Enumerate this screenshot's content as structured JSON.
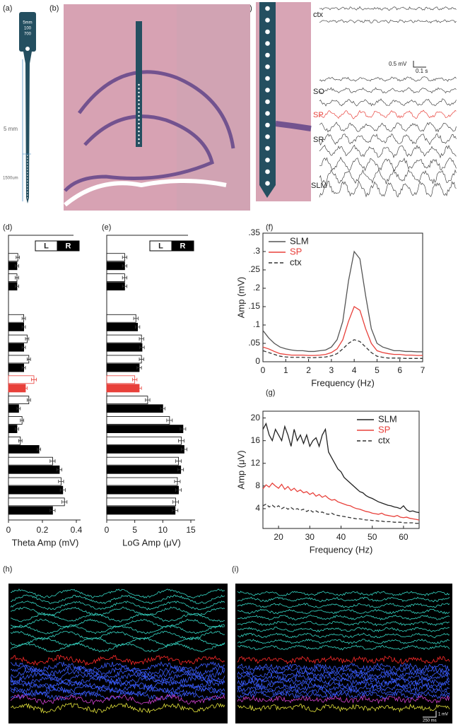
{
  "panel_labels": [
    "(a)",
    "(b)",
    "(c)",
    "(d)",
    "(e)",
    "(f)",
    "(g)",
    "(h)",
    "(i)"
  ],
  "probe": {
    "head": [
      "5mm",
      "100",
      "700"
    ],
    "length": "5 mm",
    "spacing": "1500um"
  },
  "traces": {
    "labels": [
      "ctx",
      "SO",
      "SP",
      "SR",
      "SLM"
    ],
    "scale_voltage": "0.5 mV",
    "scale_time": "0.1 s"
  },
  "recording_scale": {
    "voltage": "1 mV",
    "time": "250 ms"
  },
  "chart_data": [
    {
      "type": "hbar",
      "xlabel": "Theta Amp (mV)",
      "categories": [
        null,
        null,
        null,
        null,
        null,
        null,
        null,
        null,
        null,
        null,
        null,
        null,
        null
      ],
      "series": [
        {
          "name": "L",
          "color": "#ffffff",
          "values": [
            0.055,
            0.05,
            null,
            0.09,
            0.11,
            0.12,
            0.15,
            0.12,
            0.08,
            0.07,
            0.26,
            0.31,
            0.33
          ],
          "errors": [
            0.01,
            0.01,
            null,
            0.01,
            0.01,
            0.01,
            0.015,
            0.01,
            0.01,
            0.01,
            0.015,
            0.015,
            0.015
          ]
        },
        {
          "name": "R",
          "color": "#000000",
          "values": [
            0.05,
            0.05,
            null,
            0.09,
            0.09,
            0.09,
            0.1,
            0.06,
            0.05,
            0.18,
            0.3,
            0.32,
            0.26
          ],
          "errors": [
            0.01,
            0.01,
            null,
            0.01,
            0.01,
            0.01,
            0.01,
            0.01,
            0.01,
            0.01,
            0.015,
            0.015,
            0.015
          ]
        }
      ],
      "highlight_index": 6,
      "highlight_color": "#e8403a",
      "xlim": [
        0,
        0.4
      ],
      "xticks": [
        0,
        0.2,
        0.4
      ],
      "legend": "upper right"
    },
    {
      "type": "hbar",
      "xlabel": "LoG Amp (μV)",
      "categories": [
        null,
        null,
        null,
        null,
        null,
        null,
        null,
        null,
        null,
        null,
        null,
        null,
        null
      ],
      "series": [
        {
          "name": "L",
          "color": "#ffffff",
          "values": [
            3.2,
            3.2,
            null,
            5.2,
            6.2,
            6.2,
            5.0,
            7.3,
            11.2,
            13.3,
            12.8,
            12.6,
            12.3
          ],
          "errors": [
            0.4,
            0.4,
            null,
            0.4,
            0.4,
            0.4,
            0.4,
            0.4,
            0.5,
            0.5,
            0.5,
            0.5,
            0.5
          ]
        },
        {
          "name": "R",
          "color": "#000000",
          "values": [
            3.2,
            3.2,
            null,
            5.5,
            6.3,
            5.8,
            5.8,
            10.0,
            13.6,
            13.8,
            13.2,
            12.8,
            12.2
          ],
          "errors": [
            0.4,
            0.4,
            null,
            0.4,
            0.4,
            0.4,
            0.4,
            0.4,
            0.5,
            0.5,
            0.5,
            0.5,
            0.5
          ]
        }
      ],
      "highlight_index": 6,
      "highlight_color": "#e8403a",
      "xlim": [
        0,
        15
      ],
      "xticks": [
        0,
        5,
        10,
        15
      ],
      "legend": "upper right"
    },
    {
      "type": "line",
      "xlabel": "Frequency (Hz)",
      "ylabel": "Amp (mV)",
      "x": [
        0,
        0.25,
        0.5,
        0.75,
        1,
        1.25,
        1.5,
        1.75,
        2,
        2.25,
        2.5,
        2.75,
        3,
        3.25,
        3.5,
        3.75,
        4,
        4.25,
        4.5,
        4.75,
        5,
        5.25,
        5.5,
        5.75,
        6,
        6.25,
        6.5,
        6.75,
        7
      ],
      "series": [
        {
          "name": "SLM",
          "color": "#555555",
          "style": "solid",
          "values": [
            0.085,
            0.065,
            0.05,
            0.04,
            0.035,
            0.032,
            0.03,
            0.03,
            0.028,
            0.028,
            0.03,
            0.032,
            0.04,
            0.06,
            0.11,
            0.22,
            0.3,
            0.28,
            0.18,
            0.09,
            0.05,
            0.04,
            0.035,
            0.03,
            0.03,
            0.028,
            0.028,
            0.027,
            0.027
          ]
        },
        {
          "name": "SP",
          "color": "#e8403a",
          "style": "solid",
          "values": [
            0.04,
            0.035,
            0.028,
            0.022,
            0.02,
            0.018,
            0.018,
            0.018,
            0.017,
            0.017,
            0.018,
            0.02,
            0.025,
            0.035,
            0.06,
            0.11,
            0.15,
            0.14,
            0.09,
            0.05,
            0.03,
            0.025,
            0.022,
            0.02,
            0.02,
            0.018,
            0.018,
            0.017,
            0.017
          ]
        },
        {
          "name": "ctx",
          "color": "#333333",
          "style": "dashed",
          "values": [
            0.03,
            0.025,
            0.02,
            0.015,
            0.013,
            0.012,
            0.012,
            0.012,
            0.011,
            0.011,
            0.012,
            0.013,
            0.016,
            0.022,
            0.035,
            0.05,
            0.06,
            0.055,
            0.04,
            0.025,
            0.015,
            0.012,
            0.01,
            0.01,
            0.01,
            0.009,
            0.009,
            0.009,
            0.009
          ]
        }
      ],
      "xlim": [
        0,
        7
      ],
      "xticks": [
        0,
        1,
        2,
        3,
        4,
        5,
        6,
        7
      ],
      "ylim": [
        0,
        0.35
      ],
      "yticks": [
        0,
        {
          "value": 0.05,
          "label": ".05"
        },
        {
          "value": 0.1,
          "label": ".1"
        },
        {
          "value": 0.15,
          "label": ".15"
        },
        {
          "value": 0.2,
          "label": ".2"
        },
        {
          "value": 0.25,
          "label": ".25"
        },
        {
          "value": 0.3,
          "label": ".3"
        },
        {
          "value": 0.35,
          "label": ".35"
        }
      ],
      "legend": "upper left"
    },
    {
      "type": "line",
      "xlabel": "Frequency (Hz)",
      "ylabel": "Amp (μV)",
      "x": [
        15,
        16,
        17,
        18,
        19,
        20,
        21,
        22,
        23,
        24,
        25,
        26,
        27,
        28,
        29,
        30,
        31,
        32,
        33,
        34,
        35,
        36,
        37,
        38,
        39,
        40,
        41,
        42,
        43,
        44,
        45,
        46,
        47,
        48,
        49,
        50,
        51,
        52,
        53,
        54,
        55,
        56,
        57,
        58,
        59,
        60,
        61,
        62,
        63,
        64,
        65
      ],
      "series": [
        {
          "name": "SLM",
          "color": "#222222",
          "style": "solid",
          "values": [
            18,
            19,
            17,
            16,
            18,
            17,
            16,
            18.5,
            17,
            15,
            18,
            16,
            17,
            15.5,
            17,
            15,
            16,
            16.5,
            15,
            17,
            18,
            14,
            13,
            12,
            11,
            10.5,
            9.5,
            9,
            8.5,
            8,
            7.5,
            7,
            6.8,
            6.3,
            6,
            5.8,
            5.5,
            5.2,
            5,
            4.8,
            4.6,
            4.5,
            4.3,
            4.2,
            4,
            4.5,
            3.8,
            3.5,
            3.6,
            3.4,
            3.3
          ]
        },
        {
          "name": "SP",
          "color": "#e8403a",
          "style": "solid",
          "values": [
            7.5,
            8.2,
            7.8,
            8.5,
            8,
            7.6,
            8.3,
            7.4,
            7.9,
            7.2,
            7.6,
            7,
            7.3,
            6.8,
            7,
            6.5,
            6.8,
            6.2,
            6.5,
            6,
            6.3,
            5.8,
            5.5,
            5.6,
            5.2,
            5,
            4.8,
            4.6,
            4.5,
            4.2,
            4,
            3.9,
            3.7,
            3.5,
            3.4,
            3.2,
            3.1,
            3,
            3.2,
            2.9,
            2.8,
            2.7,
            2.6,
            2.8,
            2.5,
            2.4,
            2.5,
            2.3,
            2.2,
            2.1,
            2
          ]
        },
        {
          "name": "ctx",
          "color": "#333333",
          "style": "dashed",
          "values": [
            4.5,
            4.8,
            4.3,
            4.6,
            4.2,
            4.5,
            4,
            4.3,
            3.9,
            4.2,
            3.8,
            4,
            3.7,
            3.9,
            3.5,
            3.8,
            3.4,
            3.6,
            3.3,
            3.4,
            3.1,
            3,
            3.2,
            2.9,
            2.8,
            2.7,
            2.6,
            2.5,
            2.4,
            2.3,
            2.2,
            2.2,
            2.1,
            2,
            2,
            1.9,
            1.9,
            1.8,
            1.8,
            1.7,
            1.7,
            1.7,
            1.6,
            1.6,
            1.6,
            1.5,
            1.5,
            1.5,
            1.5,
            1.4,
            1.4
          ]
        }
      ],
      "xlim": [
        15,
        65
      ],
      "xticks": [
        20,
        30,
        40,
        50,
        60
      ],
      "ylim": [
        0.5,
        21.2
      ],
      "yticks": [
        4,
        8,
        12,
        16,
        20
      ],
      "legend": "upper right"
    }
  ]
}
